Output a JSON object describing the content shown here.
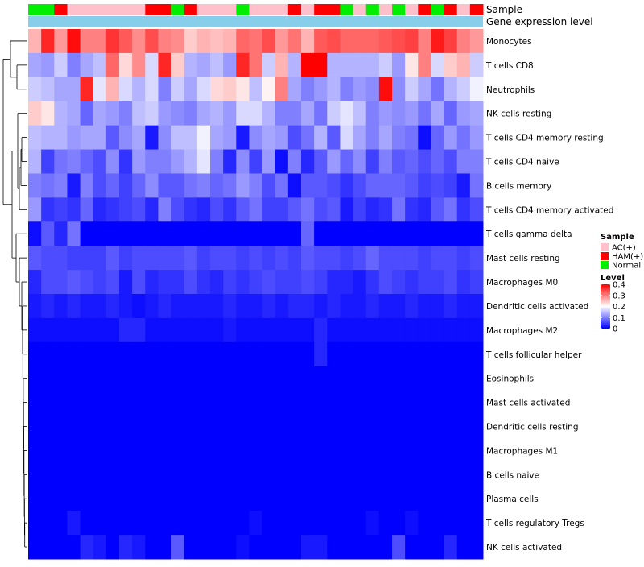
{
  "chart_data": {
    "type": "heatmap",
    "title": "",
    "annotation_bars": {
      "sample_label": "Sample",
      "expression_label": "Gene expression level"
    },
    "sample_groups": [
      "Normal",
      "Normal",
      "HAM(+)",
      "AC(+)",
      "AC(+)",
      "AC(+)",
      "AC(+)",
      "AC(+)",
      "AC(+)",
      "HAM(+)",
      "HAM(+)",
      "Normal",
      "HAM(+)",
      "AC(+)",
      "AC(+)",
      "AC(+)",
      "Normal",
      "AC(+)",
      "AC(+)",
      "AC(+)",
      "HAM(+)",
      "AC(+)",
      "HAM(+)",
      "HAM(+)",
      "Normal",
      "AC(+)",
      "Normal",
      "AC(+)",
      "Normal",
      "AC(+)",
      "HAM(+)",
      "Normal",
      "HAM(+)",
      "AC(+)",
      "HAM(+)"
    ],
    "rows": [
      {
        "label": "Monocytes",
        "values": [
          0.26,
          0.37,
          0.28,
          0.39,
          0.3,
          0.3,
          0.36,
          0.33,
          0.29,
          0.34,
          0.3,
          0.29,
          0.24,
          0.26,
          0.25,
          0.26,
          0.32,
          0.31,
          0.34,
          0.28,
          0.31,
          0.26,
          0.33,
          0.34,
          0.32,
          0.32,
          0.32,
          0.33,
          0.34,
          0.35,
          0.3,
          0.38,
          0.35,
          0.3,
          0.28
        ]
      },
      {
        "label": "T cells CD8",
        "values": [
          0.13,
          0.12,
          0.16,
          0.1,
          0.13,
          0.15,
          0.32,
          0.23,
          0.29,
          0.17,
          0.37,
          0.24,
          0.14,
          0.13,
          0.15,
          0.12,
          0.37,
          0.31,
          0.16,
          0.26,
          0.14,
          0.4,
          0.4,
          0.14,
          0.14,
          0.14,
          0.14,
          0.16,
          0.12,
          0.22,
          0.3,
          0.17,
          0.24,
          0.26,
          0.16
        ]
      },
      {
        "label": "Neutrophils",
        "values": [
          0.16,
          0.15,
          0.13,
          0.13,
          0.37,
          0.18,
          0.26,
          0.17,
          0.14,
          0.17,
          0.1,
          0.16,
          0.13,
          0.17,
          0.23,
          0.24,
          0.22,
          0.15,
          0.21,
          0.3,
          0.13,
          0.1,
          0.12,
          0.14,
          0.1,
          0.12,
          0.11,
          0.39,
          0.11,
          0.16,
          0.13,
          0.09,
          0.14,
          0.16,
          0.19
        ]
      },
      {
        "label": "NK cells resting",
        "values": [
          0.24,
          0.22,
          0.14,
          0.13,
          0.08,
          0.13,
          0.12,
          0.1,
          0.15,
          0.16,
          0.12,
          0.11,
          0.1,
          0.13,
          0.14,
          0.12,
          0.17,
          0.17,
          0.14,
          0.1,
          0.1,
          0.13,
          0.09,
          0.16,
          0.18,
          0.15,
          0.1,
          0.12,
          0.11,
          0.12,
          0.09,
          0.13,
          0.08,
          0.12,
          0.13
        ]
      },
      {
        "label": "T cells CD4 memory resting",
        "values": [
          0.15,
          0.14,
          0.14,
          0.12,
          0.13,
          0.13,
          0.07,
          0.11,
          0.13,
          0.02,
          0.11,
          0.15,
          0.15,
          0.19,
          0.13,
          0.12,
          0.02,
          0.11,
          0.13,
          0.12,
          0.06,
          0.09,
          0.14,
          0.07,
          0.17,
          0.13,
          0.1,
          0.13,
          0.1,
          0.09,
          0.01,
          0.08,
          0.12,
          0.09,
          0.12
        ]
      },
      {
        "label": "T cells CD4 naive",
        "values": [
          0.14,
          0.05,
          0.09,
          0.1,
          0.08,
          0.06,
          0.11,
          0.04,
          0.12,
          0.1,
          0.1,
          0.12,
          0.14,
          0.18,
          0.1,
          0.03,
          0.11,
          0.05,
          0.12,
          0.01,
          0.1,
          0.03,
          0.07,
          0.12,
          0.08,
          0.11,
          0.05,
          0.1,
          0.07,
          0.08,
          0.06,
          0.08,
          0.06,
          0.1,
          0.1
        ]
      },
      {
        "label": "B cells memory",
        "values": [
          0.1,
          0.09,
          0.1,
          0.02,
          0.1,
          0.06,
          0.08,
          0.05,
          0.08,
          0.11,
          0.07,
          0.07,
          0.09,
          0.1,
          0.08,
          0.09,
          0.12,
          0.1,
          0.06,
          0.09,
          0.01,
          0.07,
          0.07,
          0.06,
          0.04,
          0.06,
          0.08,
          0.08,
          0.08,
          0.07,
          0.05,
          0.06,
          0.05,
          0.02,
          0.09
        ]
      },
      {
        "label": "T cells CD4 memory activated",
        "values": [
          0.12,
          0.04,
          0.05,
          0.04,
          0.08,
          0.03,
          0.04,
          0.05,
          0.06,
          0.03,
          0.1,
          0.06,
          0.04,
          0.03,
          0.06,
          0.04,
          0.07,
          0.09,
          0.05,
          0.05,
          0.07,
          0.09,
          0.06,
          0.07,
          0.02,
          0.05,
          0.03,
          0.04,
          0.09,
          0.04,
          0.03,
          0.07,
          0.09,
          0.04,
          0.06
        ]
      },
      {
        "label": "T cells gamma delta",
        "values": [
          0.01,
          0.07,
          0.03,
          0.09,
          0.0,
          0.0,
          0.0,
          0.0,
          0.0,
          0.0,
          0.0,
          0.0,
          0.0,
          0.0,
          0.0,
          0.0,
          0.0,
          0.0,
          0.0,
          0.0,
          0.0,
          0.08,
          0.0,
          0.0,
          0.0,
          0.0,
          0.0,
          0.0,
          0.0,
          0.0,
          0.0,
          0.0,
          0.0,
          0.0,
          0.0
        ]
      },
      {
        "label": "Mast cells resting",
        "values": [
          0.07,
          0.06,
          0.06,
          0.05,
          0.05,
          0.05,
          0.07,
          0.05,
          0.06,
          0.06,
          0.06,
          0.06,
          0.07,
          0.05,
          0.06,
          0.06,
          0.05,
          0.06,
          0.05,
          0.06,
          0.05,
          0.07,
          0.06,
          0.06,
          0.05,
          0.06,
          0.08,
          0.06,
          0.06,
          0.06,
          0.05,
          0.06,
          0.06,
          0.05,
          0.06
        ]
      },
      {
        "label": "Macrophages M0",
        "values": [
          0.03,
          0.06,
          0.06,
          0.07,
          0.06,
          0.05,
          0.06,
          0.02,
          0.06,
          0.03,
          0.04,
          0.04,
          0.06,
          0.04,
          0.03,
          0.05,
          0.04,
          0.05,
          0.06,
          0.05,
          0.05,
          0.06,
          0.05,
          0.03,
          0.03,
          0.02,
          0.04,
          0.06,
          0.05,
          0.04,
          0.05,
          0.05,
          0.06,
          0.04,
          0.05
        ]
      },
      {
        "label": "Dendritic cells activated",
        "values": [
          0.02,
          0.03,
          0.02,
          0.03,
          0.02,
          0.02,
          0.03,
          0.02,
          0.01,
          0.02,
          0.03,
          0.02,
          0.02,
          0.02,
          0.02,
          0.03,
          0.02,
          0.02,
          0.03,
          0.02,
          0.03,
          0.03,
          0.02,
          0.03,
          0.02,
          0.02,
          0.03,
          0.02,
          0.02,
          0.03,
          0.02,
          0.02,
          0.03,
          0.02,
          0.02
        ]
      },
      {
        "label": "Macrophages M2",
        "values": [
          0.01,
          0.01,
          0.01,
          0.01,
          0.01,
          0.01,
          0.01,
          0.03,
          0.03,
          0.01,
          0.01,
          0.01,
          0.01,
          0.01,
          0.01,
          0.02,
          0.01,
          0.01,
          0.01,
          0.01,
          0.01,
          0.01,
          0.03,
          0.01,
          0.01,
          0.01,
          0.01,
          0.01,
          0.01,
          0.01,
          0.01,
          0.01,
          0.01,
          0.01,
          0.01
        ]
      },
      {
        "label": "T cells follicular helper",
        "values": [
          0.0,
          0.0,
          0.0,
          0.0,
          0.0,
          0.0,
          0.0,
          0.0,
          0.0,
          0.0,
          0.0,
          0.0,
          0.0,
          0.0,
          0.0,
          0.0,
          0.0,
          0.0,
          0.0,
          0.0,
          0.0,
          0.0,
          0.03,
          0.0,
          0.0,
          0.0,
          0.0,
          0.0,
          0.0,
          0.0,
          0.0,
          0.0,
          0.0,
          0.0,
          0.0
        ]
      },
      {
        "label": "Eosinophils",
        "values": [
          0.0,
          0.0,
          0.0,
          0.0,
          0.0,
          0.0,
          0.0,
          0.0,
          0.0,
          0.0,
          0.0,
          0.0,
          0.0,
          0.0,
          0.0,
          0.0,
          0.0,
          0.0,
          0.0,
          0.0,
          0.0,
          0.0,
          0.0,
          0.0,
          0.0,
          0.0,
          0.0,
          0.0,
          0.0,
          0.0,
          0.0,
          0.0,
          0.0,
          0.0,
          0.0
        ]
      },
      {
        "label": "Mast cells activated",
        "values": [
          0.0,
          0.0,
          0.0,
          0.0,
          0.0,
          0.0,
          0.0,
          0.0,
          0.0,
          0.0,
          0.0,
          0.0,
          0.0,
          0.0,
          0.0,
          0.0,
          0.0,
          0.0,
          0.0,
          0.0,
          0.0,
          0.0,
          0.0,
          0.0,
          0.0,
          0.0,
          0.0,
          0.0,
          0.0,
          0.0,
          0.0,
          0.0,
          0.0,
          0.0,
          0.0
        ]
      },
      {
        "label": "Dendritic cells resting",
        "values": [
          0.0,
          0.0,
          0.0,
          0.0,
          0.0,
          0.0,
          0.0,
          0.0,
          0.0,
          0.0,
          0.0,
          0.0,
          0.0,
          0.0,
          0.0,
          0.0,
          0.0,
          0.0,
          0.0,
          0.0,
          0.0,
          0.0,
          0.0,
          0.0,
          0.0,
          0.0,
          0.0,
          0.0,
          0.0,
          0.0,
          0.0,
          0.0,
          0.0,
          0.0,
          0.0
        ]
      },
      {
        "label": "Macrophages M1",
        "values": [
          0.0,
          0.0,
          0.0,
          0.0,
          0.0,
          0.0,
          0.0,
          0.0,
          0.0,
          0.0,
          0.0,
          0.0,
          0.0,
          0.0,
          0.0,
          0.0,
          0.0,
          0.0,
          0.0,
          0.0,
          0.0,
          0.0,
          0.0,
          0.0,
          0.0,
          0.0,
          0.0,
          0.0,
          0.0,
          0.0,
          0.0,
          0.0,
          0.0,
          0.0,
          0.0
        ]
      },
      {
        "label": "B cells naive",
        "values": [
          0.0,
          0.0,
          0.0,
          0.0,
          0.0,
          0.0,
          0.0,
          0.0,
          0.0,
          0.0,
          0.0,
          0.0,
          0.0,
          0.0,
          0.0,
          0.0,
          0.0,
          0.0,
          0.0,
          0.0,
          0.0,
          0.0,
          0.0,
          0.0,
          0.0,
          0.0,
          0.0,
          0.0,
          0.0,
          0.0,
          0.0,
          0.0,
          0.0,
          0.0,
          0.0
        ]
      },
      {
        "label": "Plasma cells",
        "values": [
          0.0,
          0.0,
          0.0,
          0.0,
          0.0,
          0.0,
          0.0,
          0.0,
          0.0,
          0.0,
          0.0,
          0.0,
          0.0,
          0.0,
          0.0,
          0.0,
          0.0,
          0.0,
          0.0,
          0.0,
          0.0,
          0.0,
          0.0,
          0.0,
          0.0,
          0.0,
          0.0,
          0.0,
          0.0,
          0.0,
          0.0,
          0.0,
          0.0,
          0.0,
          0.0
        ]
      },
      {
        "label": "T cells regulatory  Tregs",
        "values": [
          0.0,
          0.0,
          0.0,
          0.02,
          0.0,
          0.0,
          0.0,
          0.0,
          0.0,
          0.0,
          0.0,
          0.0,
          0.0,
          0.0,
          0.0,
          0.0,
          0.0,
          0.01,
          0.0,
          0.0,
          0.0,
          0.0,
          0.0,
          0.0,
          0.0,
          0.0,
          0.01,
          0.0,
          0.0,
          0.01,
          0.0,
          0.0,
          0.0,
          0.0,
          0.0
        ]
      },
      {
        "label": "NK cells activated",
        "values": [
          0.0,
          0.0,
          0.0,
          0.0,
          0.03,
          0.02,
          0.0,
          0.03,
          0.02,
          0.0,
          0.0,
          0.07,
          0.0,
          0.0,
          0.0,
          0.0,
          0.01,
          0.0,
          0.0,
          0.0,
          0.0,
          0.02,
          0.02,
          0.0,
          0.0,
          0.0,
          0.0,
          0.0,
          0.06,
          0.0,
          0.0,
          0.0,
          0.03,
          0.0,
          0.0
        ]
      }
    ],
    "color_scale": {
      "min": 0,
      "mid": 0.2,
      "max": 0.4,
      "low_color": "#0000ff",
      "mid_color": "#ffffff",
      "high_color": "#ff0000"
    },
    "legend": {
      "sample_title": "Sample",
      "sample_entries": [
        {
          "label": "AC(+)",
          "color": "#ffc0cb"
        },
        {
          "label": "HAM(+)",
          "color": "#ff0000"
        },
        {
          "label": "Normal",
          "color": "#00ee00"
        }
      ],
      "level_title": "Level",
      "level_ticks": [
        "0.4",
        "0.3",
        "0.2",
        "0.1",
        "0"
      ],
      "level_tick_values": [
        0.4,
        0.3,
        0.2,
        0.1,
        0
      ],
      "placement": "right"
    },
    "dendrogram": "rows",
    "expression_bar_color": "#87ceeb"
  }
}
